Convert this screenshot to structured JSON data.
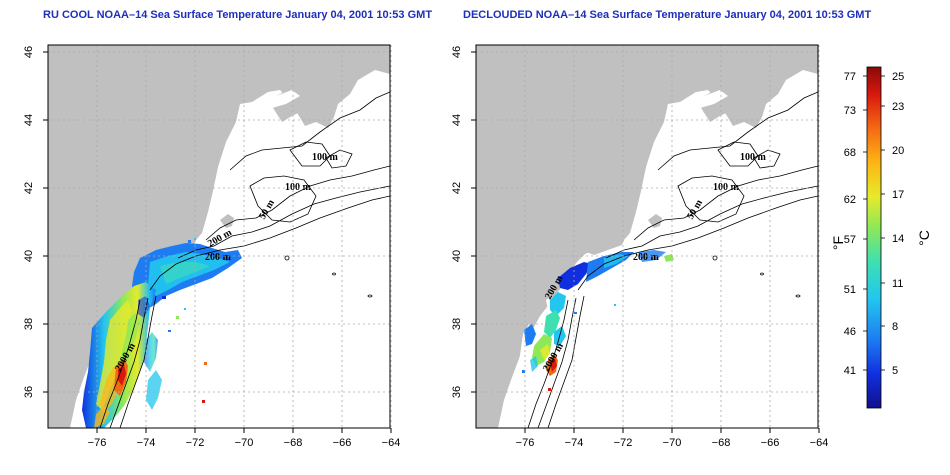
{
  "panels": [
    {
      "title": "RU COOL NOAA–14 Sea Surface Temperature January 04, 2001 10:53 GMT",
      "contour_labels": [
        "100 m",
        "100 m",
        "50 m",
        "200 m",
        "200 m",
        "2000 m"
      ]
    },
    {
      "title": "DECLOUDED NOAA–14 Sea Surface Temperature January 04, 2001 10:53 GMT",
      "contour_labels": [
        "100 m",
        "100 m",
        "50 m",
        "200 m",
        "200 m",
        "2000 m"
      ]
    }
  ],
  "axes": {
    "x_ticks": [
      "−76",
      "−74",
      "−72",
      "−70",
      "−68",
      "−66",
      "−64"
    ],
    "y_ticks": [
      "36",
      "38",
      "40",
      "42",
      "44",
      "46"
    ],
    "grid": true
  },
  "colorbar": {
    "left_unit": "°F",
    "right_unit": "°C",
    "f_ticks": [
      "77",
      "73",
      "68",
      "62",
      "57",
      "51",
      "46",
      "41"
    ],
    "c_ticks": [
      "25",
      "23",
      "20",
      "17",
      "14",
      "11",
      "8",
      "5"
    ],
    "colors": [
      "#10108a",
      "#1030e0",
      "#1d7cf2",
      "#22c6ee",
      "#3fe0b0",
      "#8ee858",
      "#e7ea2a",
      "#fdb515",
      "#f46a12",
      "#d8180f",
      "#8a0a08"
    ]
  },
  "colors": {
    "land": "#c0c0c0",
    "title": "#1e2fb8"
  }
}
